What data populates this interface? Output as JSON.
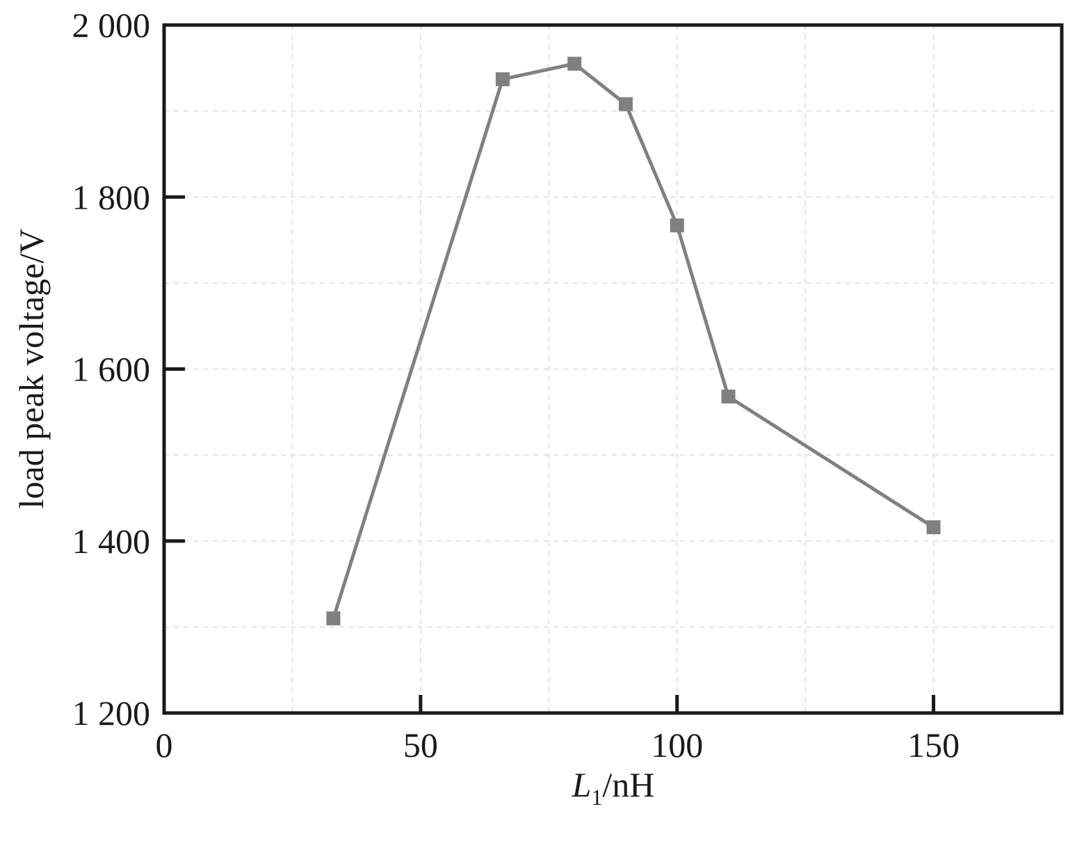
{
  "chart_data": {
    "type": "line",
    "title": "",
    "xlabel_main": "L",
    "xlabel_sub": "1",
    "xlabel_unit": "/nH",
    "ylabel": "load peak voltage/V",
    "xlim": [
      0,
      175
    ],
    "ylim": [
      1200,
      2000
    ],
    "xticks": [
      0,
      50,
      100,
      150
    ],
    "xtick_labels": [
      "0",
      "50",
      "100",
      "150"
    ],
    "yticks": [
      1200,
      1400,
      1600,
      1800,
      2000
    ],
    "ytick_labels": [
      "1 200",
      "1 400",
      "1 600",
      "1 800",
      "2 000"
    ],
    "x_minor_grid": [
      25,
      75,
      125
    ],
    "y_minor_grid": [
      1300,
      1500,
      1700,
      1900
    ],
    "grid": true,
    "series": [
      {
        "color": "#808080",
        "marker": "square",
        "x": [
          33,
          66,
          80,
          90,
          100,
          110,
          150
        ],
        "y": [
          1310,
          1937,
          1955,
          1908,
          1767,
          1568,
          1416
        ]
      }
    ]
  }
}
